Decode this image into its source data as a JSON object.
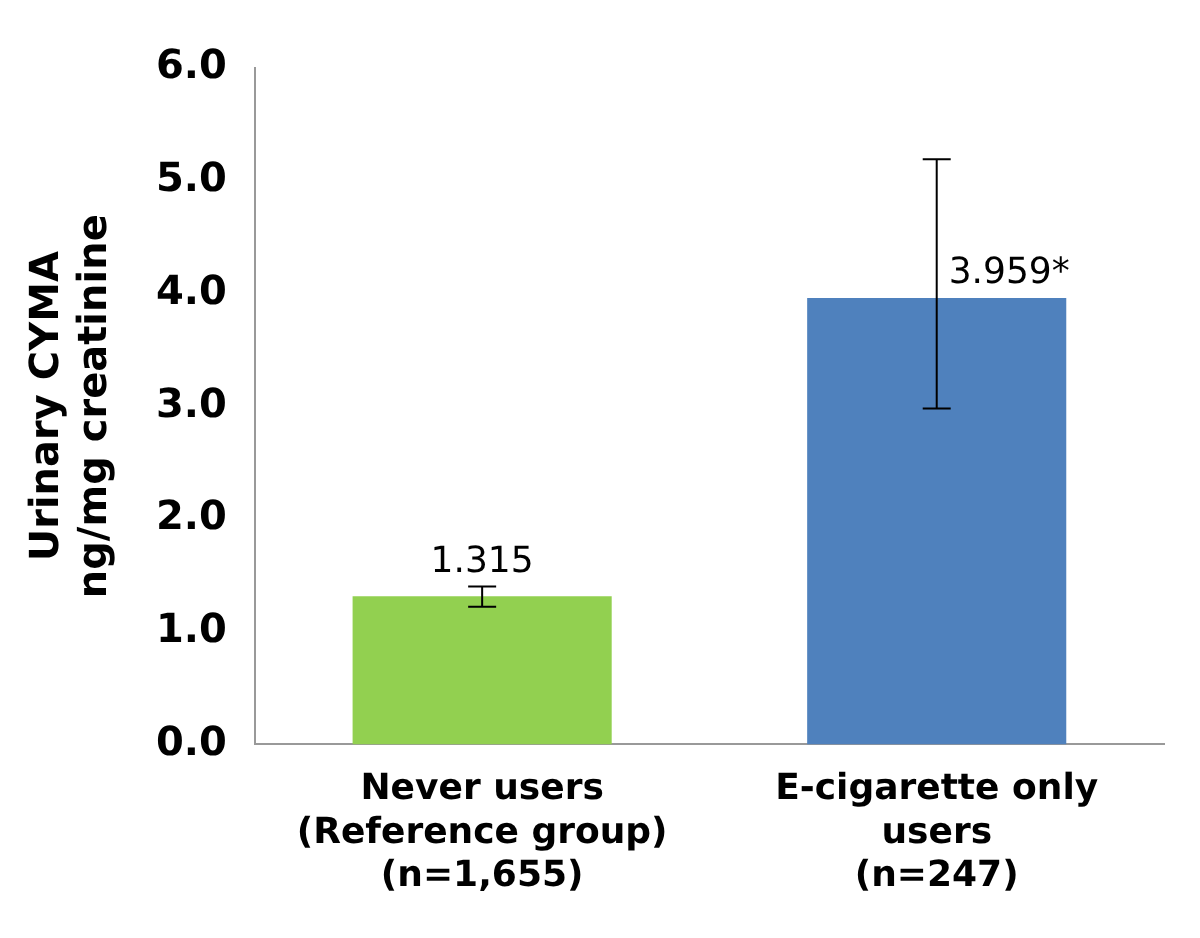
{
  "chart_data": {
    "type": "bar",
    "ylabel": "Urinary CYMA\nng/mg creatinine",
    "categories": [
      "Never users\n(Reference group)\n(n=1,655)",
      "E-cigarette only\nusers\n(n=247)"
    ],
    "values": [
      1.315,
      3.959
    ],
    "colors": [
      "#92d050",
      "#4f81bd"
    ],
    "errors": [
      [
        1.22,
        1.4
      ],
      [
        2.98,
        5.19
      ]
    ],
    "value_labels": [
      "1.315",
      "3.959*"
    ],
    "ylim": [
      0,
      6
    ],
    "yticks": [
      {
        "value": 0,
        "label": "0.0"
      },
      {
        "value": 1,
        "label": "1.0"
      },
      {
        "value": 2,
        "label": "2.0"
      },
      {
        "value": 3,
        "label": "3.0"
      },
      {
        "value": 4,
        "label": "4.0"
      },
      {
        "value": 5,
        "label": "5.0"
      },
      {
        "value": 6,
        "label": "6.0"
      }
    ],
    "grid": false,
    "legend": false
  }
}
